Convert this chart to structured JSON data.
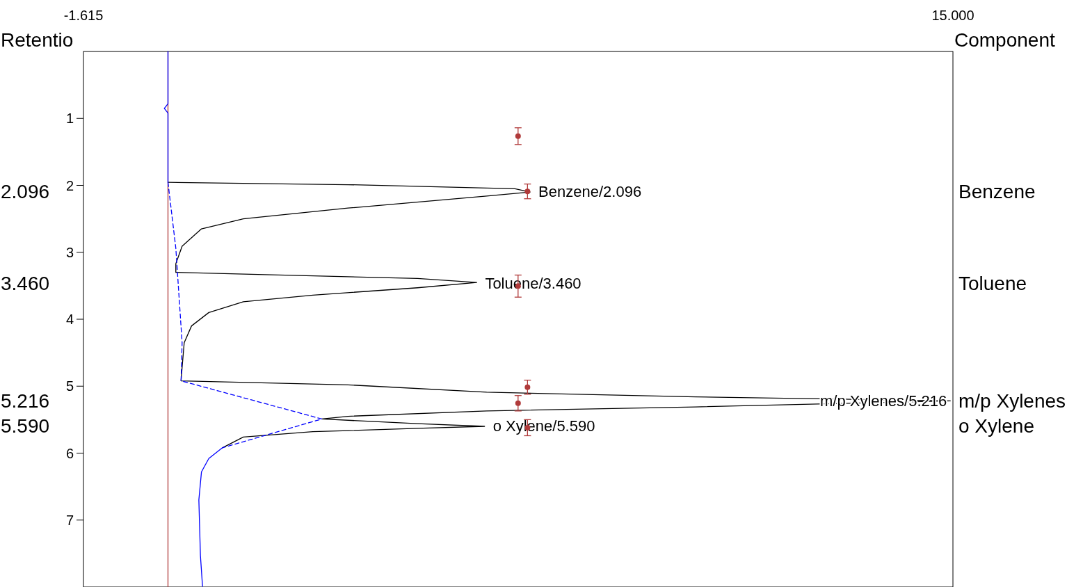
{
  "chart_data": {
    "type": "line",
    "orientation": "horizontal",
    "xlim": [
      -1.615,
      15
    ],
    "xticks": [
      {
        "value": -1.615,
        "label": "-1.615"
      },
      {
        "value": 15,
        "label": "15.000"
      }
    ],
    "ylim": [
      8,
      0
    ],
    "yticks": [
      1,
      2,
      3,
      4,
      5,
      6,
      7
    ],
    "y2label": "Component",
    "y3label": "Retentio",
    "y3lim": [
      8,
      0
    ],
    "y3ticks": [
      {
        "value": 2.096,
        "label": "2.096"
      },
      {
        "value": 3.46,
        "label": "3.460"
      },
      {
        "value": 5.216,
        "label": "5.216"
      },
      {
        "value": 5.59,
        "label": "5.590"
      }
    ],
    "ref_lines": [
      {
        "axis": "x",
        "value": 0,
        "color": "#b03a3a"
      }
    ],
    "series": [
      {
        "color": "#000000",
        "line_style": "solid",
        "x": [
          1.955,
          1.99,
          2.05,
          2.1,
          2.16,
          2.34,
          2.5,
          2.65,
          2.91,
          3.17,
          3.3,
          3.34,
          3.39,
          3.45,
          3.53,
          3.64,
          3.74,
          3.9,
          4.1,
          4.35,
          4.72,
          4.92,
          4.98,
          5.09,
          5.16,
          5.22,
          5.31,
          5.37,
          5.45,
          5.49,
          5.56,
          5.6,
          5.63,
          5.68,
          5.76,
          5.92
        ],
        "values": [
          0,
          3.44,
          6.63,
          6.92,
          6.09,
          3.44,
          1.44,
          0.64,
          0.27,
          0.15,
          0.15,
          2.11,
          4.77,
          5.9,
          4.77,
          2.77,
          1.44,
          0.78,
          0.45,
          0.31,
          0.27,
          0.25,
          3.44,
          6.09,
          10.08,
          14.95,
          10.08,
          6.09,
          3.44,
          2.94,
          4.77,
          6.05,
          4.77,
          2.77,
          1.44,
          1.04
        ]
      },
      {
        "color": "#0000ff",
        "line_style": "solid",
        "x": [
          0,
          0.78,
          0.85,
          0.92,
          1.5,
          1.955,
          3,
          5.92,
          6.08,
          6.28,
          6.7,
          7.53,
          7.99
        ],
        "values": [
          0,
          0,
          -0.07,
          0,
          0,
          0,
          null,
          1.04,
          0.78,
          0.64,
          0.59,
          0.62,
          0.66
        ]
      },
      {
        "type": "line",
        "color": "#0000ff",
        "line_style": "dashed",
        "x": [
          1.955,
          2.94,
          4.35,
          4.92,
          5.49,
          5.92
        ],
        "values": [
          0,
          0.15,
          0.27,
          0.25,
          2.94,
          1.04
        ]
      },
      {
        "type": "scatter",
        "color": "#b03a3a",
        "marker": "circle",
        "x": [
          1.265,
          2.09,
          3.505,
          5.015,
          5.255,
          5.62
        ],
        "values": [
          6.69,
          6.87,
          6.69,
          6.87,
          6.69,
          6.87
        ],
        "xerrors": [
          [
            1.14,
            1.39
          ],
          [
            1.98,
            2.2
          ],
          [
            3.34,
            3.67
          ],
          [
            4.91,
            5.12
          ],
          [
            5.14,
            5.37
          ],
          [
            5.5,
            5.74
          ]
        ]
      }
    ],
    "annotations": [
      {
        "text": "Benzene/2.096",
        "x": 6.92,
        "y": 2.096
      },
      {
        "text": "Toluene/3.460",
        "x": 5.9,
        "y": 3.46
      },
      {
        "text": "m/p Xylenes/5.216",
        "x": 14.95,
        "y": 5.216
      },
      {
        "text": "o Xylene/5.590",
        "x": 6.05,
        "y": 5.59
      },
      "Benzene",
      "Toluene",
      "m/p Xylenes",
      "o Xylene"
    ]
  }
}
